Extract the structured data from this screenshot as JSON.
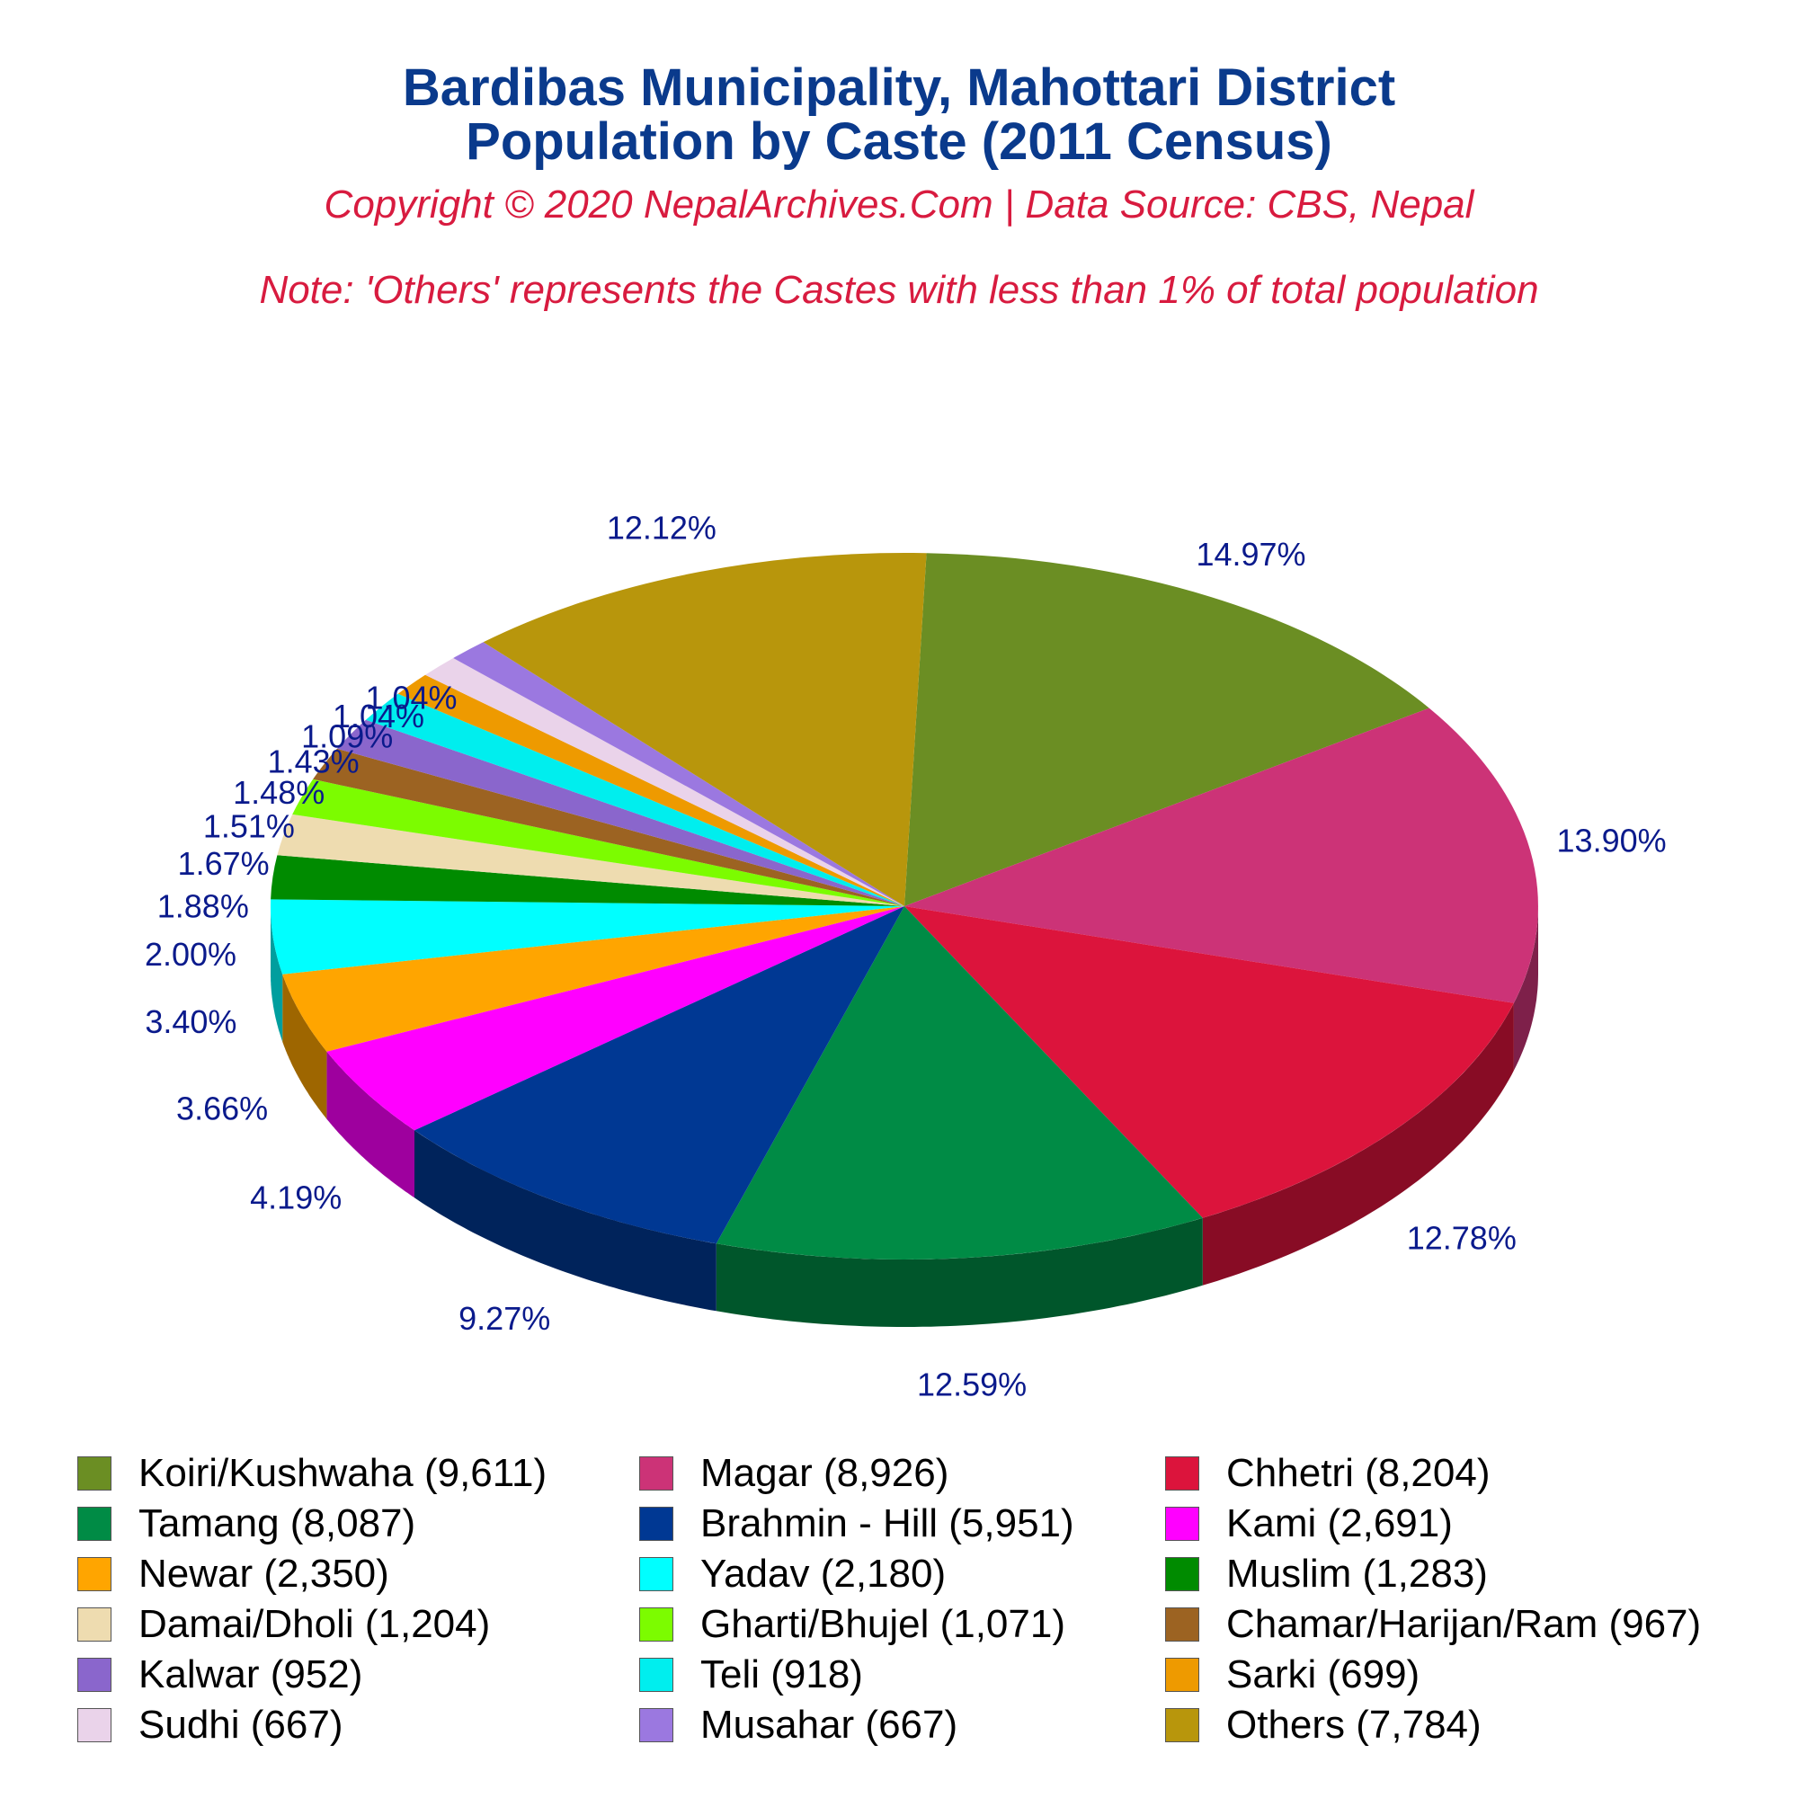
{
  "header": {
    "title_line1": "Bardibas Municipality, Mahottari District",
    "title_line2": "Population by Caste (2011 Census)",
    "copyright": "Copyright © 2020 NepalArchives.Com | Data Source: CBS, Nepal",
    "note": "Note: 'Others' represents the Castes with less than 1% of total population"
  },
  "chart_data": {
    "type": "pie",
    "title": "Bardibas Municipality, Mahottari District\nPopulation by Caste (2011 Census)",
    "legend_placement": "bottom",
    "slices": [
      {
        "label": "Koiri/Kushwaha (9,611)",
        "name": "Koiri/Kushwaha",
        "value": 9611,
        "percent": "14.97%",
        "color": "#6b8e23"
      },
      {
        "label": "Magar (8,926)",
        "name": "Magar",
        "value": 8926,
        "percent": "13.90%",
        "color": "#cc3377"
      },
      {
        "label": "Chhetri (8,204)",
        "name": "Chhetri",
        "value": 8204,
        "percent": "12.78%",
        "color": "#dc143c"
      },
      {
        "label": "Tamang (8,087)",
        "name": "Tamang",
        "value": 8087,
        "percent": "12.59%",
        "color": "#008b45"
      },
      {
        "label": "Brahmin - Hill (5,951)",
        "name": "Brahmin - Hill",
        "value": 5951,
        "percent": "9.27%",
        "color": "#003893"
      },
      {
        "label": "Kami (2,691)",
        "name": "Kami",
        "value": 2691,
        "percent": "4.19%",
        "color": "#ff00ff"
      },
      {
        "label": "Newar (2,350)",
        "name": "Newar",
        "value": 2350,
        "percent": "3.66%",
        "color": "#ffa500"
      },
      {
        "label": "Yadav (2,180)",
        "name": "Yadav",
        "value": 2180,
        "percent": "3.40%",
        "color": "#00ffff"
      },
      {
        "label": "Muslim (1,283)",
        "name": "Muslim",
        "value": 1283,
        "percent": "2.00%",
        "color": "#008b00"
      },
      {
        "label": "Damai/Dholi (1,204)",
        "name": "Damai/Dholi",
        "value": 1204,
        "percent": "1.88%",
        "color": "#eedcb0"
      },
      {
        "label": "Gharti/Bhujel (1,071)",
        "name": "Gharti/Bhujel",
        "value": 1071,
        "percent": "1.67%",
        "color": "#7cfc00"
      },
      {
        "label": "Chamar/Harijan/Ram (967)",
        "name": "Chamar/Harijan/Ram",
        "value": 967,
        "percent": "1.51%",
        "color": "#9c6322"
      },
      {
        "label": "Kalwar (952)",
        "name": "Kalwar",
        "value": 952,
        "percent": "1.48%",
        "color": "#8a66cc"
      },
      {
        "label": "Teli (918)",
        "name": "Teli",
        "value": 918,
        "percent": "1.43%",
        "color": "#00eeee"
      },
      {
        "label": "Sarki (699)",
        "name": "Sarki",
        "value": 699,
        "percent": "1.09%",
        "color": "#ee9a00"
      },
      {
        "label": "Sudhi (667)",
        "name": "Sudhi",
        "value": 667,
        "percent": "1.04%",
        "color": "#ead3ea"
      },
      {
        "label": "Musahar (667)",
        "name": "Musahar",
        "value": 667,
        "percent": "1.04%",
        "color": "#9b78e0"
      },
      {
        "label": "Others (7,784)",
        "name": "Others",
        "value": 7784,
        "percent": "12.12%",
        "color": "#b8960c"
      }
    ]
  }
}
